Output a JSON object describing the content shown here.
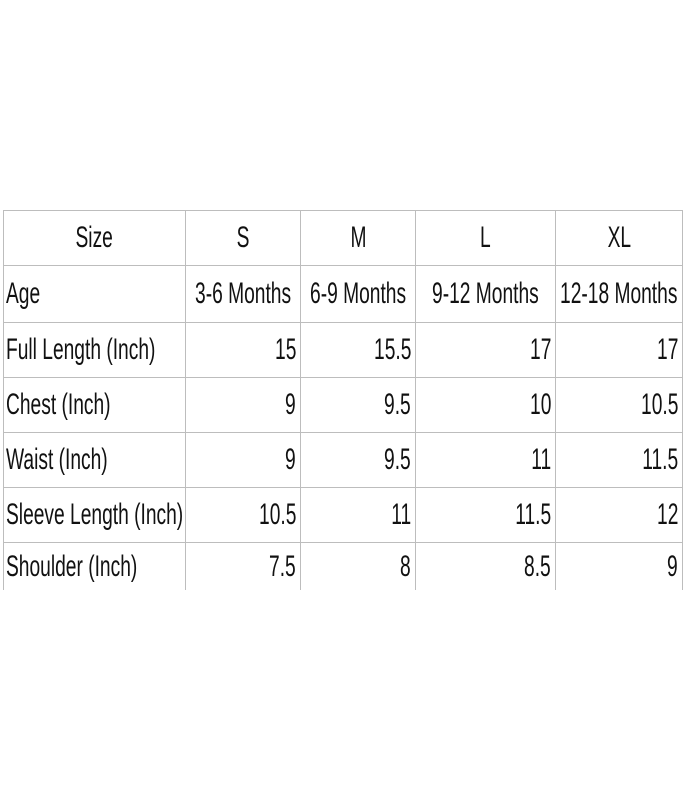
{
  "table": {
    "header": [
      "Size",
      "S",
      "M",
      "L",
      "XL"
    ],
    "rows": [
      [
        "Age",
        "3-6 Months",
        "6-9 Months",
        "9-12 Months",
        "12-18 Months"
      ],
      [
        "Full Length (Inch)",
        15,
        15.5,
        17,
        17
      ],
      [
        "Chest (Inch)",
        9,
        9.5,
        10,
        10.5
      ],
      [
        "Waist (Inch)",
        9,
        9.5,
        11,
        11.5
      ],
      [
        "Sleeve Length (Inch)",
        10.5,
        11,
        11.5,
        12
      ],
      [
        "Shoulder (Inch)",
        7.5,
        8,
        8.5,
        9
      ]
    ]
  }
}
